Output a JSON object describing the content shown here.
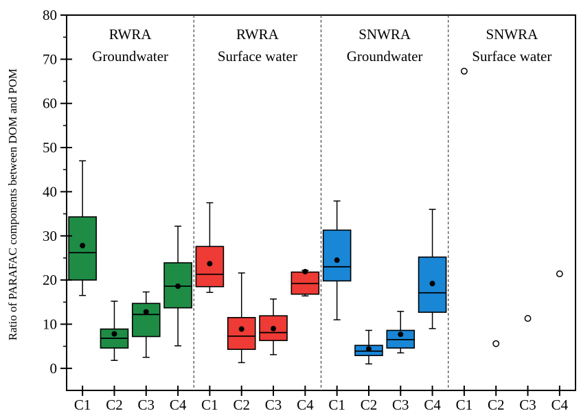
{
  "chart_data": {
    "type": "box",
    "ylabel": "Ratio of PARAFAC components between DOM and POM",
    "xlabel": "",
    "ylim": [
      -5,
      80
    ],
    "yticks": [
      0,
      10,
      20,
      30,
      40,
      50,
      60,
      70,
      80
    ],
    "grid": false,
    "categories": [
      "C1",
      "C2",
      "C3",
      "C4"
    ],
    "groups": [
      {
        "title_line1": "RWRA",
        "title_line2": "Groundwater",
        "color": "#1e8c45",
        "boxes": [
          {
            "category": "C1",
            "whisker_low": 16.5,
            "q1": 20,
            "median": 26.2,
            "q3": 34.3,
            "whisker_high": 47,
            "mean": 27.8
          },
          {
            "category": "C2",
            "whisker_low": 1.8,
            "q1": 4.6,
            "median": 6.8,
            "q3": 8.9,
            "whisker_high": 15.2,
            "mean": 7.8
          },
          {
            "category": "C3",
            "whisker_low": 2.5,
            "q1": 7.2,
            "median": 12.2,
            "q3": 14.7,
            "whisker_high": 17.3,
            "mean": 12.8
          },
          {
            "category": "C4",
            "whisker_low": 5.1,
            "q1": 13.7,
            "median": 18.6,
            "q3": 23.9,
            "whisker_high": 32.2,
            "mean": 18.6
          }
        ]
      },
      {
        "title_line1": "RWRA",
        "title_line2": "Surface water",
        "color": "#ee3b35",
        "boxes": [
          {
            "category": "C1",
            "whisker_low": 17.2,
            "q1": 18.5,
            "median": 21.3,
            "q3": 27.6,
            "whisker_high": 37.5,
            "mean": 23.7
          },
          {
            "category": "C2",
            "whisker_low": 1.3,
            "q1": 4.3,
            "median": 7.3,
            "q3": 11.5,
            "whisker_high": 21.6,
            "mean": 8.9
          },
          {
            "category": "C3",
            "whisker_low": 3.1,
            "q1": 6.3,
            "median": 8.1,
            "q3": 11.9,
            "whisker_high": 15.7,
            "mean": 9
          },
          {
            "category": "C4",
            "whisker_low": 16.4,
            "q1": 16.8,
            "median": 19.2,
            "q3": 21.8,
            "whisker_high": 22.2,
            "mean": 21.9
          }
        ]
      },
      {
        "title_line1": "SNWRA",
        "title_line2": "Groundwater",
        "color": "#1a86d6",
        "boxes": [
          {
            "category": "C1",
            "whisker_low": 11,
            "q1": 19.8,
            "median": 23,
            "q3": 31.3,
            "whisker_high": 37.9,
            "mean": 24.5
          },
          {
            "category": "C2",
            "whisker_low": 1,
            "q1": 2.9,
            "median": 3.9,
            "q3": 5.2,
            "whisker_high": 8.6,
            "mean": 4.4
          },
          {
            "category": "C3",
            "whisker_low": 3.5,
            "q1": 4.6,
            "median": 6.5,
            "q3": 8.6,
            "whisker_high": 12.9,
            "mean": 7.7
          },
          {
            "category": "C4",
            "whisker_low": 9,
            "q1": 12.7,
            "median": 17.1,
            "q3": 25.2,
            "whisker_high": 36,
            "mean": 19.2
          }
        ]
      },
      {
        "title_line1": "SNWRA",
        "title_line2": "Surface water",
        "color": "#000000",
        "points": [
          {
            "category": "C1",
            "value": 67.3
          },
          {
            "category": "C2",
            "value": 5.6
          },
          {
            "category": "C3",
            "value": 11.3
          },
          {
            "category": "C4",
            "value": 21.4
          }
        ]
      }
    ]
  }
}
